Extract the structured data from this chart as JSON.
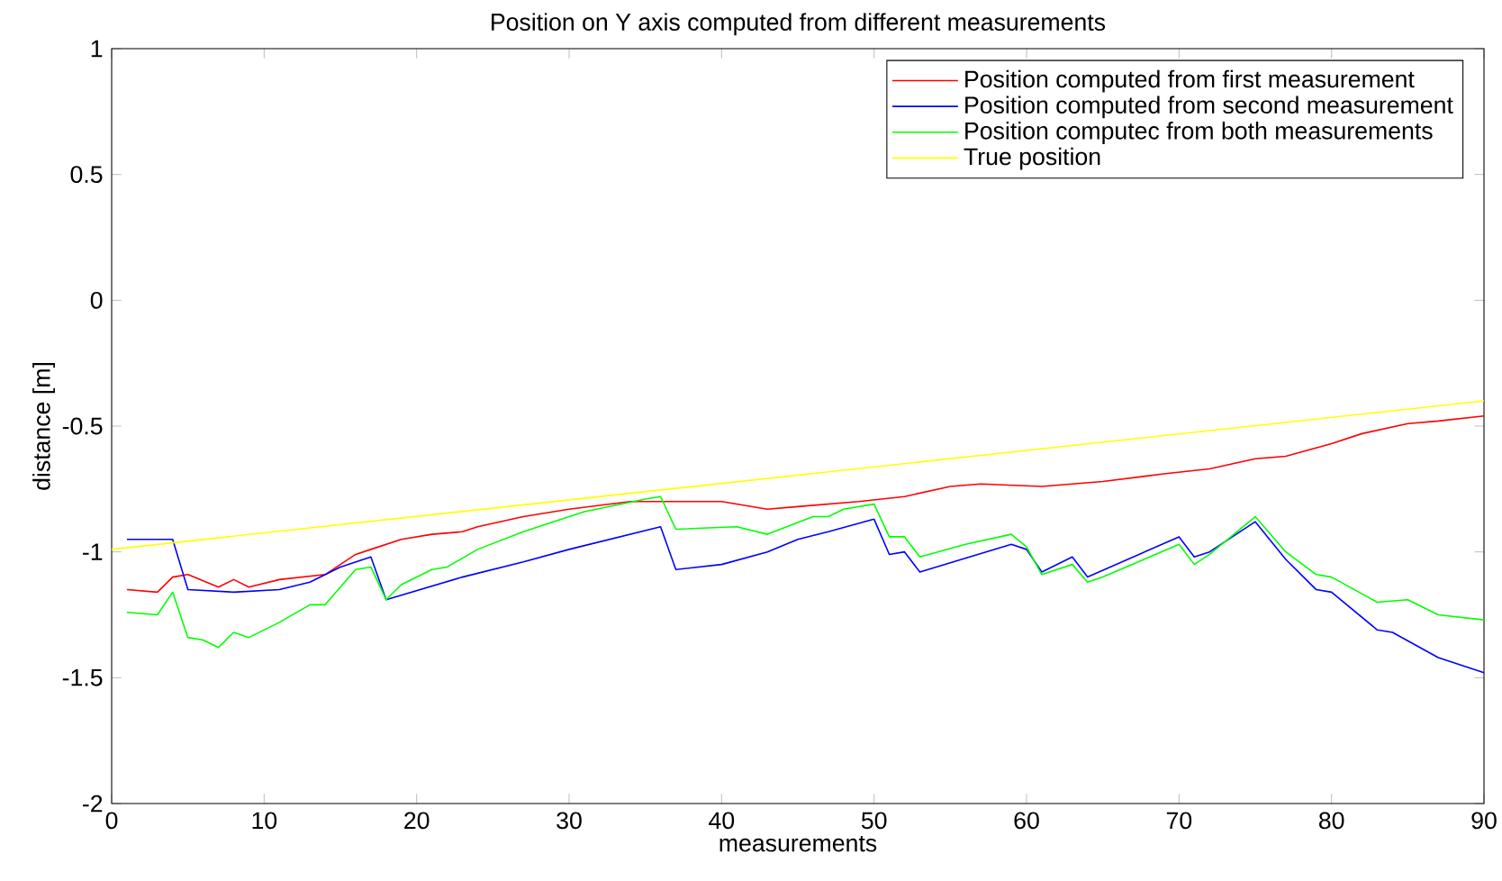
{
  "chart_data": {
    "type": "line",
    "title": "Position on Y axis computed from different measurements",
    "xlabel": "measurements",
    "ylabel": "distance [m]",
    "xlim": [
      0,
      90
    ],
    "ylim": [
      -2,
      1
    ],
    "xticks": [
      0,
      10,
      20,
      30,
      40,
      50,
      60,
      70,
      80,
      90
    ],
    "yticks": [
      -2,
      -1.5,
      -1,
      -0.5,
      0,
      0.5,
      1
    ],
    "legend": "top right",
    "grid": false,
    "marker": "none",
    "line_style": "solid",
    "series": [
      {
        "name": "Position computed from first measurement",
        "color": "#ff0000",
        "x": [
          1,
          3,
          4,
          5,
          7,
          8,
          9,
          11,
          14,
          16,
          17,
          19,
          21,
          23,
          24,
          27,
          30,
          34,
          40,
          43,
          45,
          49,
          52,
          55,
          57,
          61,
          65,
          69,
          72,
          75,
          77,
          80,
          82,
          85,
          87,
          90
        ],
        "values": [
          -1.15,
          -1.16,
          -1.1,
          -1.09,
          -1.14,
          -1.11,
          -1.14,
          -1.11,
          -1.09,
          -1.01,
          -0.99,
          -0.95,
          -0.93,
          -0.92,
          -0.9,
          -0.86,
          -0.83,
          -0.8,
          -0.8,
          -0.83,
          -0.82,
          -0.8,
          -0.78,
          -0.74,
          -0.73,
          -0.74,
          -0.72,
          -0.69,
          -0.67,
          -0.63,
          -0.62,
          -0.57,
          -0.53,
          -0.49,
          -0.48,
          -0.46
        ]
      },
      {
        "name": "Position computed from second measurement",
        "color": "#0000ff",
        "x": [
          1,
          4,
          5,
          8,
          11,
          13,
          15,
          17,
          18,
          23,
          27,
          30,
          36,
          37,
          40,
          43,
          45,
          47,
          50,
          51,
          52,
          53,
          59,
          60,
          61,
          63,
          64,
          70,
          71,
          72,
          75,
          77,
          79,
          80,
          83,
          84,
          87,
          90
        ],
        "values": [
          -0.95,
          -0.95,
          -1.15,
          -1.16,
          -1.15,
          -1.12,
          -1.06,
          -1.02,
          -1.19,
          -1.1,
          -1.04,
          -0.99,
          -0.9,
          -1.07,
          -1.05,
          -1.0,
          -0.95,
          -0.92,
          -0.87,
          -1.01,
          -1.0,
          -1.08,
          -0.97,
          -0.99,
          -1.08,
          -1.02,
          -1.1,
          -0.94,
          -1.02,
          -1.0,
          -0.88,
          -1.03,
          -1.15,
          -1.16,
          -1.31,
          -1.32,
          -1.42,
          -1.48
        ]
      },
      {
        "name": "Position computec from both measurements",
        "color": "#00ff00",
        "x": [
          1,
          3,
          4,
          5,
          6,
          7,
          8,
          9,
          11,
          13,
          14,
          16,
          17,
          18,
          19,
          21,
          22,
          24,
          27,
          31,
          35,
          36,
          37,
          41,
          43,
          46,
          47,
          48,
          50,
          51,
          52,
          53,
          56,
          59,
          60,
          61,
          63,
          64,
          65,
          70,
          71,
          72,
          75,
          77,
          79,
          80,
          83,
          85,
          87,
          90
        ],
        "values": [
          -1.24,
          -1.25,
          -1.16,
          -1.34,
          -1.35,
          -1.38,
          -1.32,
          -1.34,
          -1.28,
          -1.21,
          -1.21,
          -1.07,
          -1.06,
          -1.19,
          -1.13,
          -1.07,
          -1.06,
          -0.99,
          -0.92,
          -0.84,
          -0.79,
          -0.78,
          -0.91,
          -0.9,
          -0.93,
          -0.86,
          -0.86,
          -0.83,
          -0.81,
          -0.94,
          -0.94,
          -1.02,
          -0.97,
          -0.93,
          -0.98,
          -1.09,
          -1.05,
          -1.12,
          -1.1,
          -0.97,
          -1.05,
          -1.01,
          -0.86,
          -1.0,
          -1.09,
          -1.1,
          -1.2,
          -1.19,
          -1.25,
          -1.27
        ]
      },
      {
        "name": "True position",
        "color": "#ffff00",
        "x": [
          0,
          90
        ],
        "values": [
          -0.99,
          -0.4
        ]
      }
    ]
  }
}
